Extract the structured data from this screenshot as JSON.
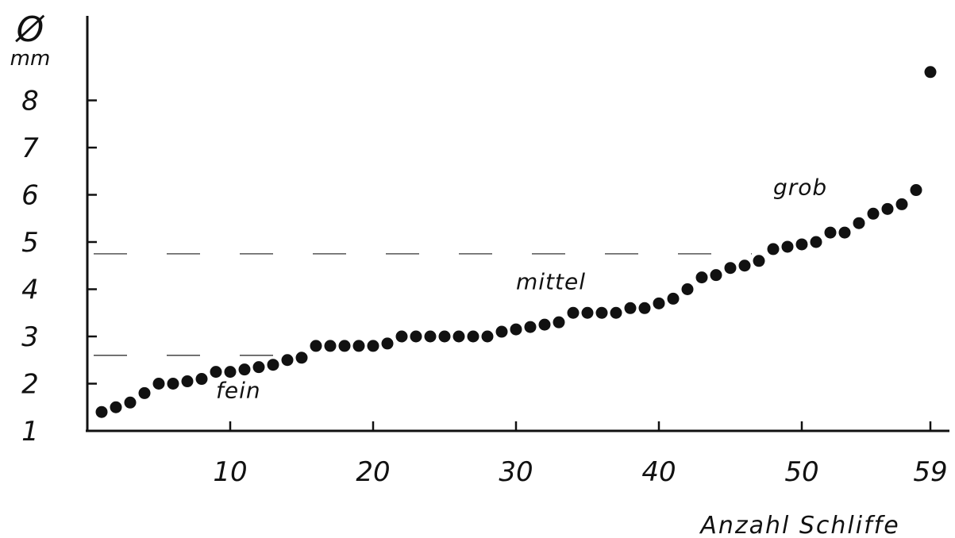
{
  "chart_data": {
    "type": "scatter",
    "y_unit_symbol": "Ø",
    "y_unit": "mm",
    "xlabel": "Anzahl Schliffe",
    "xlim": [
      0,
      60
    ],
    "ylim": [
      1,
      9
    ],
    "x_ticks": [
      10,
      20,
      30,
      40,
      50,
      59
    ],
    "y_ticks": [
      1,
      2,
      3,
      4,
      5,
      6,
      7,
      8
    ],
    "grid": false,
    "class_boundaries": [
      2.6,
      4.75
    ],
    "annotations": [
      {
        "text": "fein",
        "x": 9,
        "y": 1.7
      },
      {
        "text": "mittel",
        "x": 30,
        "y": 4.0
      },
      {
        "text": "grob",
        "x": 48,
        "y": 6.0
      }
    ],
    "series": [
      {
        "x": [
          1,
          2,
          3,
          4,
          5,
          6,
          7,
          8,
          9,
          10,
          11,
          12,
          13,
          14,
          15,
          16,
          17,
          18,
          19,
          20,
          21,
          22,
          23,
          24,
          25,
          26,
          27,
          28,
          29,
          30,
          31,
          32,
          33,
          34,
          35,
          36,
          37,
          38,
          39,
          40,
          41,
          42,
          43,
          44,
          45,
          46,
          47,
          48,
          49,
          50,
          51,
          52,
          53,
          54,
          55,
          56,
          57,
          58,
          59
        ],
        "y": [
          1.4,
          1.5,
          1.6,
          1.8,
          2.0,
          2.0,
          2.05,
          2.1,
          2.25,
          2.25,
          2.3,
          2.35,
          2.4,
          2.5,
          2.55,
          2.8,
          2.8,
          2.8,
          2.8,
          2.8,
          2.85,
          3.0,
          3.0,
          3.0,
          3.0,
          3.0,
          3.0,
          3.0,
          3.1,
          3.15,
          3.2,
          3.25,
          3.3,
          3.5,
          3.5,
          3.5,
          3.5,
          3.6,
          3.6,
          3.7,
          3.8,
          4.0,
          4.25,
          4.3,
          4.45,
          4.5,
          4.6,
          4.85,
          4.9,
          4.95,
          5.0,
          5.2,
          5.2,
          5.4,
          5.6,
          5.7,
          5.8,
          6.1,
          8.6
        ]
      }
    ]
  }
}
